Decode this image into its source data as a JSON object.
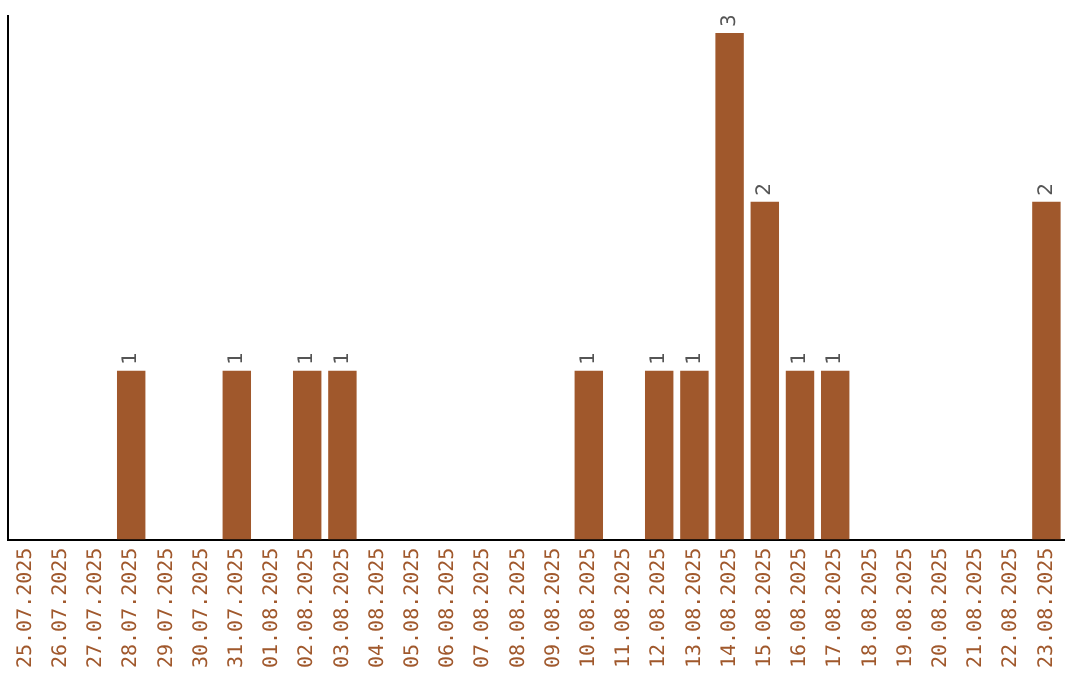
{
  "chart_data": {
    "type": "bar",
    "categories": [
      "25.07.2025",
      "26.07.2025",
      "27.07.2025",
      "28.07.2025",
      "29.07.2025",
      "30.07.2025",
      "31.07.2025",
      "01.08.2025",
      "02.08.2025",
      "03.08.2025",
      "04.08.2025",
      "05.08.2025",
      "06.08.2025",
      "07.08.2025",
      "08.08.2025",
      "09.08.2025",
      "10.08.2025",
      "11.08.2025",
      "12.08.2025",
      "13.08.2025",
      "14.08.2025",
      "15.08.2025",
      "16.08.2025",
      "17.08.2025",
      "18.08.2025",
      "19.08.2025",
      "20.08.2025",
      "21.08.2025",
      "22.08.2025",
      "23.08.2025"
    ],
    "values": [
      0,
      0,
      0,
      1,
      0,
      0,
      1,
      0,
      1,
      1,
      0,
      0,
      0,
      0,
      0,
      0,
      1,
      0,
      1,
      1,
      3,
      2,
      1,
      1,
      0,
      0,
      0,
      0,
      0,
      2
    ],
    "value_labels": [
      null,
      null,
      null,
      "1",
      null,
      null,
      "1",
      null,
      "1",
      "1",
      null,
      null,
      null,
      null,
      null,
      null,
      "1",
      null,
      "1",
      "1",
      "3",
      "2",
      "1",
      "1",
      null,
      null,
      null,
      null,
      null,
      "2"
    ],
    "color": "#a0582c",
    "ylim": [
      0,
      3.1
    ],
    "tick_labels": "x",
    "grid": false,
    "legend": false
  }
}
